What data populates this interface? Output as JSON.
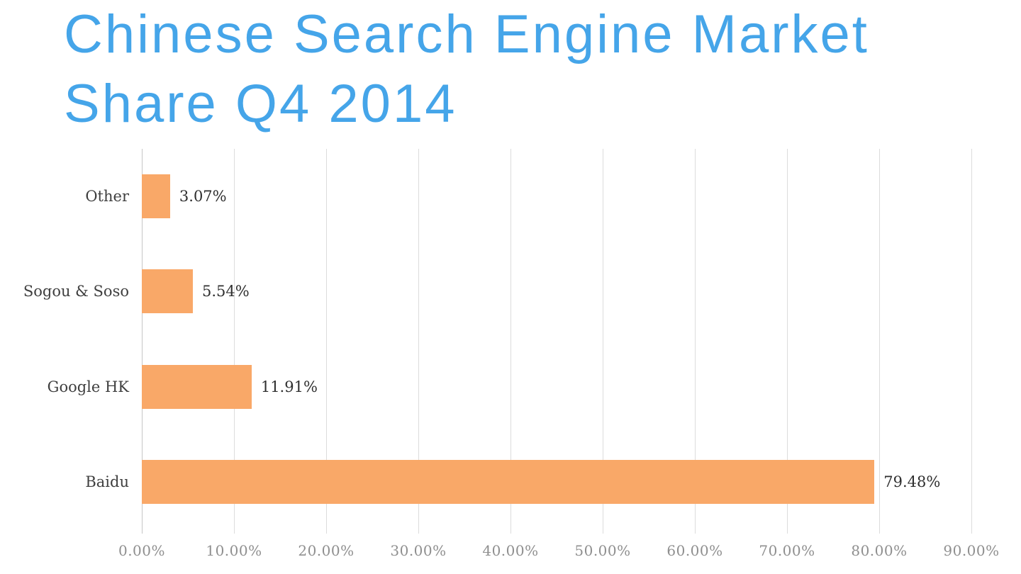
{
  "title_lines": [
    "Chinese Search Engine Market",
    "Share Q4 2014"
  ],
  "colors": {
    "title": "#45A5E9",
    "bar": "#F9A868",
    "gridline": "#DCDCDC",
    "category_label": "#3F3F3F",
    "value_label": "#2F2F2F",
    "tick_label": "#8F8F8F"
  },
  "chart_data": {
    "type": "bar",
    "orientation": "horizontal",
    "title": "Chinese Search Engine Market Share Q4 2014",
    "categories": [
      "Other",
      "Sogou & Soso",
      "Google HK",
      "Baidu"
    ],
    "values": [
      3.07,
      5.54,
      11.91,
      79.48
    ],
    "value_labels": [
      "3.07%",
      "5.54%",
      "11.91%",
      "79.48%"
    ],
    "xlabel": "",
    "ylabel": "",
    "xlim": [
      0,
      90
    ],
    "x_tick_values": [
      0,
      10,
      20,
      30,
      40,
      50,
      60,
      70,
      80,
      90
    ],
    "x_ticks": [
      "0.00%",
      "10.00%",
      "20.00%",
      "30.00%",
      "40.00%",
      "50.00%",
      "60.00%",
      "70.00%",
      "80.00%",
      "90.00%"
    ],
    "grid": true,
    "legend": false
  }
}
